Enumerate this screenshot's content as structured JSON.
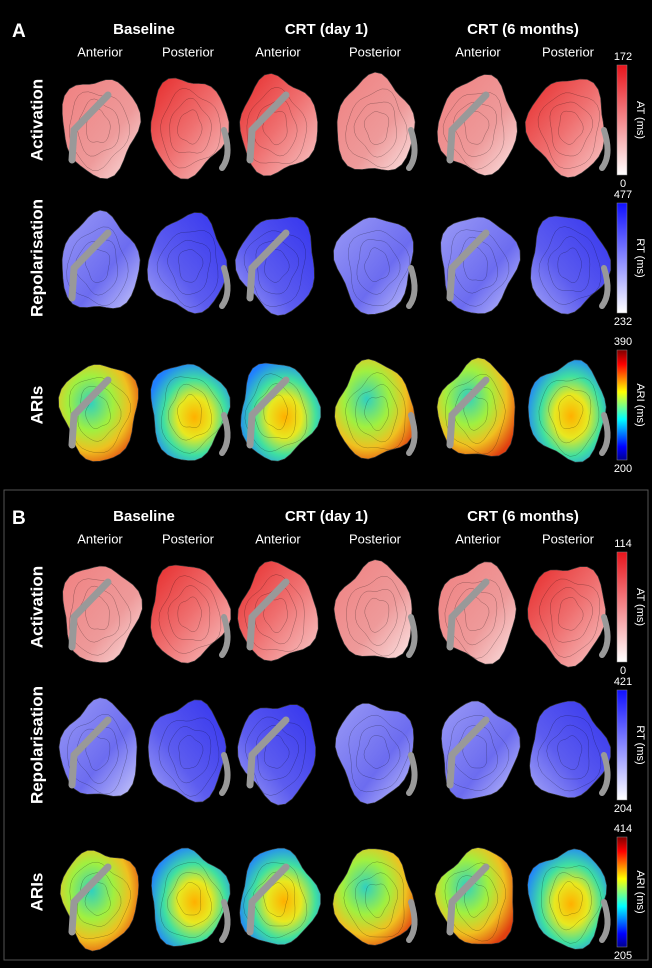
{
  "panels": [
    {
      "label": "A",
      "groups": [
        {
          "title": "Baseline",
          "views": [
            "Anterior",
            "Posterior"
          ]
        },
        {
          "title": "CRT (day 1)",
          "views": [
            "Anterior",
            "Posterior"
          ]
        },
        {
          "title": "CRT (6 months)",
          "views": [
            "Anterior",
            "Posterior"
          ]
        }
      ],
      "rows": [
        {
          "label": "Activation",
          "colorbar": {
            "title": "AT (ms)",
            "max": 172,
            "min": 0
          }
        },
        {
          "label": "Repolarisation",
          "colorbar": {
            "title": "RT (ms)",
            "max": 477,
            "min": 232
          }
        },
        {
          "label": "ARIs",
          "colorbar": {
            "title": "ARI (ms)",
            "max": 390,
            "min": 200
          }
        }
      ]
    },
    {
      "label": "B",
      "groups": [
        {
          "title": "Baseline",
          "views": [
            "Anterior",
            "Posterior"
          ]
        },
        {
          "title": "CRT (day 1)",
          "views": [
            "Anterior",
            "Posterior"
          ]
        },
        {
          "title": "CRT (6 months)",
          "views": [
            "Anterior",
            "Posterior"
          ]
        }
      ],
      "rows": [
        {
          "label": "Activation",
          "colorbar": {
            "title": "AT (ms)",
            "max": 114,
            "min": 0
          }
        },
        {
          "label": "Repolarisation",
          "colorbar": {
            "title": "RT (ms)",
            "max": 421,
            "min": 204
          }
        },
        {
          "label": "ARIs",
          "colorbar": {
            "title": "ARI (ms)",
            "max": 414,
            "min": 205
          }
        }
      ]
    }
  ]
}
